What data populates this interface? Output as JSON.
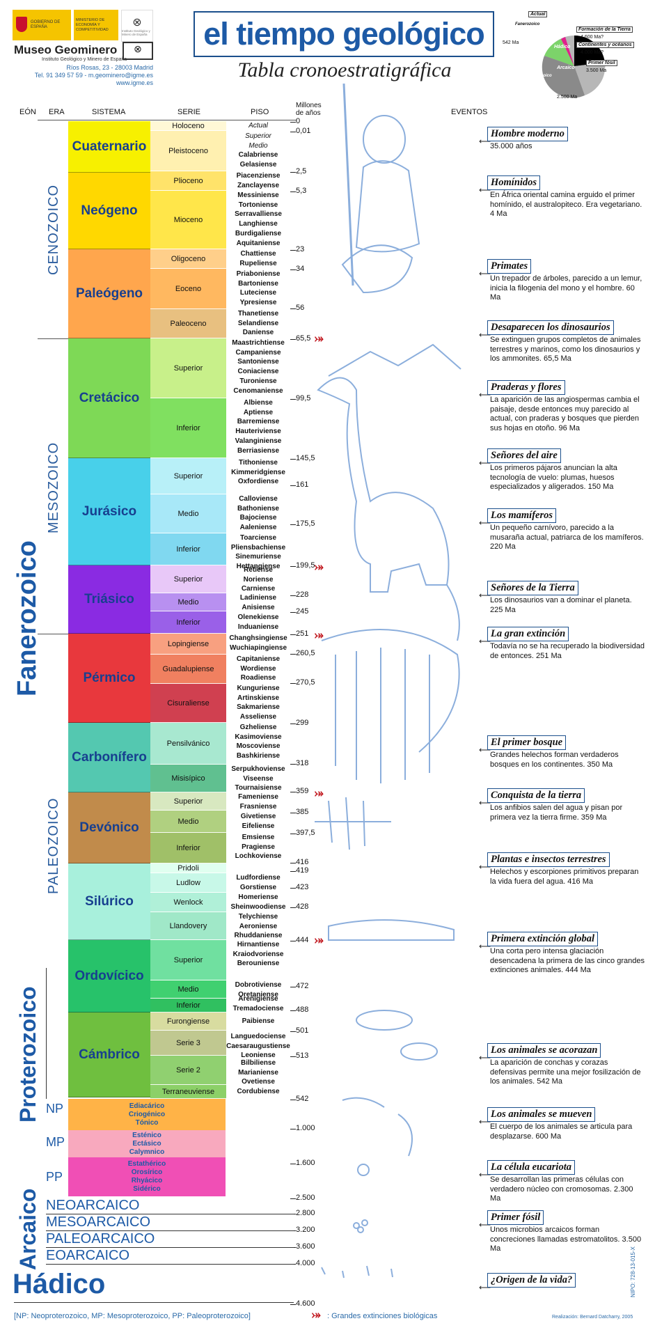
{
  "header": {
    "gov_label": "GOBIERNO DE ESPAÑA",
    "ministry_label": "MINISTERIO DE ECONOMÍA Y COMPETITIVIDAD",
    "igme_label": "Instituto Geológico y Minero de España",
    "museum_name": "Museo Geominero",
    "museum_sub": "Instituto Geológico y Minero de España",
    "address": "Ríos Rosas, 23 - 28003 Madrid",
    "contact": "Tel. 91 349 57 59 - m.geominero@igme.es",
    "web": "www.igme.es",
    "title": "el tiempo geológico",
    "subtitle": "Tabla cronoestratigráfica"
  },
  "pie": {
    "labels": [
      "Actual",
      "Fanerozoico",
      "542 Ma",
      "Formación de la Tierra",
      "4.600 Ma?",
      "Hádico",
      "Continentes y océanos",
      "4.000 Ma?",
      "Arcaico",
      "Primer fósil",
      "3.500 Ma",
      "Proterozoico",
      "2.500 Ma"
    ],
    "colors": {
      "fanerozoico": "#7cd36a",
      "proterozoico": "#8a8a8a",
      "arcaico": "#b7b7b7",
      "hadico": "#000000",
      "accent": "#e0208c"
    }
  },
  "columns": {
    "eon": "EÓN",
    "era": "ERA",
    "sistema": "SISTEMA",
    "serie": "SERIE",
    "piso": "PISO",
    "age": "Millones de años",
    "eventos": "EVENTOS"
  },
  "eons": {
    "fanerozoico": "Fanerozoico",
    "proterozoico": "Proterozoico",
    "arcaico": "Arcaico",
    "hadico": "Hádico"
  },
  "eras": {
    "cenozoico": "CENOZOICO",
    "mesozoico": "MESOZOICO",
    "paleozoico": "PALEOZOICO"
  },
  "systems": [
    {
      "name": "Cuaternario",
      "color": "#f7f000"
    },
    {
      "name": "Neógeno",
      "color": "#ffd800"
    },
    {
      "name": "Paleógeno",
      "color": "#ffa64d"
    },
    {
      "name": "Cretácico",
      "color": "#7ed956"
    },
    {
      "name": "Jurásico",
      "color": "#48d0ea"
    },
    {
      "name": "Triásico",
      "color": "#8a2be2"
    },
    {
      "name": "Pérmico",
      "color": "#e8383d"
    },
    {
      "name": "Carbonífero",
      "color": "#54c8b0"
    },
    {
      "name": "Devónico",
      "color": "#c18b4b"
    },
    {
      "name": "Silúrico",
      "color": "#a8f0dc"
    },
    {
      "name": "Ordovícico",
      "color": "#27c26a"
    },
    {
      "name": "Cámbrico",
      "color": "#6fbf3f"
    }
  ],
  "series": [
    "Holoceno",
    "Pleistoceno",
    "Plioceno",
    "Mioceno",
    "Oligoceno",
    "Eoceno",
    "Paleoceno",
    "Superior",
    "Inferior",
    "Superior",
    "Medio",
    "Inferior",
    "Superior",
    "Medio",
    "Inferior",
    "Lopingiense",
    "Guadalupiense",
    "Cisuraliense",
    "Pensilvánico",
    "Misisípico",
    "Superior",
    "Medio",
    "Inferior",
    "Pridoli",
    "Ludlow",
    "Wenlock",
    "Llandovery",
    "Superior",
    "Medio",
    "Inferior",
    "Furongiense",
    "Serie 3",
    "Serie 2",
    "Terraneuviense"
  ],
  "stages": {
    "holoceno": "Actual",
    "pleistoceno": [
      "Superior",
      "Medio",
      "Calabriense",
      "Gelasiense"
    ],
    "plioceno": [
      "Piacenziense",
      "Zanclayense"
    ],
    "mioceno": [
      "Messiniense",
      "Tortoniense",
      "Serravalliense",
      "Langhiense",
      "Burdigaliense",
      "Aquitaniense"
    ],
    "oligoceno": [
      "Chattiense",
      "Rupeliense"
    ],
    "eoceno": [
      "Priaboniense",
      "Bartoniense",
      "Luteciense",
      "Ypresiense"
    ],
    "paleoceno": [
      "Thanetiense",
      "Selandiense",
      "Daniense"
    ],
    "cret_sup": [
      "Maastrichtiense",
      "Campaniense",
      "Santoniense",
      "Coniaciense",
      "Turoniense",
      "Cenomaniense"
    ],
    "cret_inf": [
      "Albiense",
      "Aptiense",
      "Barremiense",
      "Hauteriviense",
      "Valanginiense",
      "Berriasiense"
    ],
    "jur_sup": [
      "Tithoniense",
      "Kimmeridgiense",
      "Oxfordiense"
    ],
    "jur_med": [
      "Calloviense",
      "Bathoniense",
      "Bajociense",
      "Aaleniense"
    ],
    "jur_inf": [
      "Toarciense",
      "Pliensbachiense",
      "Sinemuriense",
      "Hettangiense"
    ],
    "tri_sup": [
      "Retiense",
      "Noriense",
      "Carniense"
    ],
    "tri_med": [
      "Ladiniense",
      "Anisiense"
    ],
    "tri_inf": [
      "Olenekiense",
      "Induaniense"
    ],
    "lop": [
      "Changhsingiense",
      "Wuchiapingiense"
    ],
    "guad": [
      "Capitaniense",
      "Wordiense",
      "Roadiense"
    ],
    "cis": [
      "Kunguriense",
      "Artinskiense",
      "Sakmariense",
      "Asseliense"
    ],
    "pen": [
      "Gzheliense",
      "Kasimoviense",
      "Moscoviense",
      "Bashkiriense"
    ],
    "mis": [
      "Serpukhoviense",
      "Viseense",
      "Tournaisiense"
    ],
    "dev_sup": [
      "Fameniense",
      "Frasniense"
    ],
    "dev_med": [
      "Givetiense",
      "Eifeliense"
    ],
    "dev_inf": [
      "Emsiense",
      "Pragiense",
      "Lochkoviense"
    ],
    "ludlow": [
      "Ludfordiense",
      "Gorstiense"
    ],
    "wenlock": [
      "Homeriense",
      "Sheinwoodiense"
    ],
    "llandovery": [
      "Telychiense",
      "Aeroniense",
      "Rhuddaniense"
    ],
    "ord_sup": [
      "Hirnantiense",
      "Kraiodvoriense",
      "Berouniense"
    ],
    "ord_med": [
      "Dobrotiviense",
      "Oretaniense"
    ],
    "ord_inf": [
      "Arenigiense",
      "Tremadociense"
    ],
    "furong": [
      "Paibiense"
    ],
    "serie3": [
      "Languedociense",
      "Caesaraugustiense",
      "Leoniense"
    ],
    "serie2": [
      "Bilbiliense",
      "Marianiense",
      "Ovetiense",
      "Cordubiense"
    ]
  },
  "ages": [
    "0",
    "0,01",
    "2,5",
    "5,3",
    "23",
    "34",
    "56",
    "65,5",
    "99,5",
    "145,5",
    "161",
    "175,5",
    "199,5",
    "228",
    "245",
    "251",
    "260,5",
    "270,5",
    "299",
    "318",
    "359",
    "385",
    "397,5",
    "416",
    "419",
    "423",
    "428",
    "444",
    "472",
    "488",
    "501",
    "513",
    "542",
    "1.000",
    "1.600",
    "2.500",
    "2.800",
    "3.200",
    "3.600",
    "4.000",
    "4.600"
  ],
  "precambrian": {
    "np": "NP",
    "mp": "MP",
    "pp": "PP",
    "np_systems": [
      "Ediacárico",
      "Criogénico",
      "Tónico"
    ],
    "mp_systems": [
      "Esténico",
      "Ectásico",
      "Calymnico"
    ],
    "pp_systems": [
      "Estathérico",
      "Orosírico",
      "Rhyácico",
      "Sidérico"
    ],
    "arcaico_eras": [
      "NEOARCAICO",
      "MESOARCAICO",
      "PALEOARCAICO",
      "EOARCAICO"
    ]
  },
  "events": [
    {
      "title": "Hombre moderno",
      "text": "35.000 años"
    },
    {
      "title": "Homínidos",
      "text": "En África oriental camina erguido el primer homínido, el australopiteco. Era vegetariano. 4 Ma"
    },
    {
      "title": "Primates",
      "text": "Un trepador de árboles, parecido a un lemur, inicia la filogenia del mono y el hombre. 60 Ma"
    },
    {
      "title": "Desaparecen los dinosaurios",
      "text": "Se extinguen grupos completos de animales terrestres y marinos, como los dinosaurios y los ammonites. 65,5 Ma"
    },
    {
      "title": "Praderas y flores",
      "text": "La aparición de las angiospermas cambia el paisaje, desde entonces muy parecido al actual, con praderas y bosques que pierden sus hojas en otoño. 96 Ma"
    },
    {
      "title": "Señores del aire",
      "text": "Los primeros pájaros anuncian la alta tecnología de vuelo: plumas, huesos especializados y aligerados. 150 Ma"
    },
    {
      "title": "Los mamíferos",
      "text": "Un pequeño carnívoro, parecido a la musaraña actual, patriarca de los mamíferos. 220 Ma"
    },
    {
      "title": "Señores de la Tierra",
      "text": "Los dinosaurios van a dominar el planeta. 225 Ma"
    },
    {
      "title": "La gran extinción",
      "text": "Todavía no se ha recuperado la biodiversidad de entonces. 251 Ma"
    },
    {
      "title": "El primer bosque",
      "text": "Grandes helechos forman verdaderos bosques en los continentes. 350 Ma"
    },
    {
      "title": "Conquista de la tierra",
      "text": "Los anfibios salen del agua y pisan por primera vez la tierra firme. 359 Ma"
    },
    {
      "title": "Plantas e insectos terrestres",
      "text": "Helechos y escorpiones primitivos preparan la vida fuera del agua. 416 Ma"
    },
    {
      "title": "Primera extinción global",
      "text": "Una corta pero intensa glaciación desencadena la primera de las cinco grandes extinciones animales. 444 Ma"
    },
    {
      "title": "Los animales se acorazan",
      "text": "La aparición de conchas y corazas defensivas permite una mejor fosilización de los animales. 542 Ma"
    },
    {
      "title": "Los animales se mueven",
      "text": "El cuerpo de los animales se articula para desplazarse. 600 Ma"
    },
    {
      "title": "La célula eucariota",
      "text": "Se desarrollan las primeras células con verdadero núcleo con cromosomas. 2.300 Ma"
    },
    {
      "title": "Primer fósil",
      "text": "Unos microbios arcaicos forman concreciones llamadas estromatolitos. 3.500 Ma"
    },
    {
      "title": "¿Origen de la vida?",
      "text": ""
    }
  ],
  "footer": {
    "legend_abbrev": "[NP: Neoproterozoico, MP: Mesoproterozoico, PP: Paleoproterozoico]",
    "legend_extinction": ": Grandes extinciones biológicas",
    "credit": "Realización: Bernard Datcharry, 2005",
    "nipo": "NIPO: 728-13-015-X"
  }
}
